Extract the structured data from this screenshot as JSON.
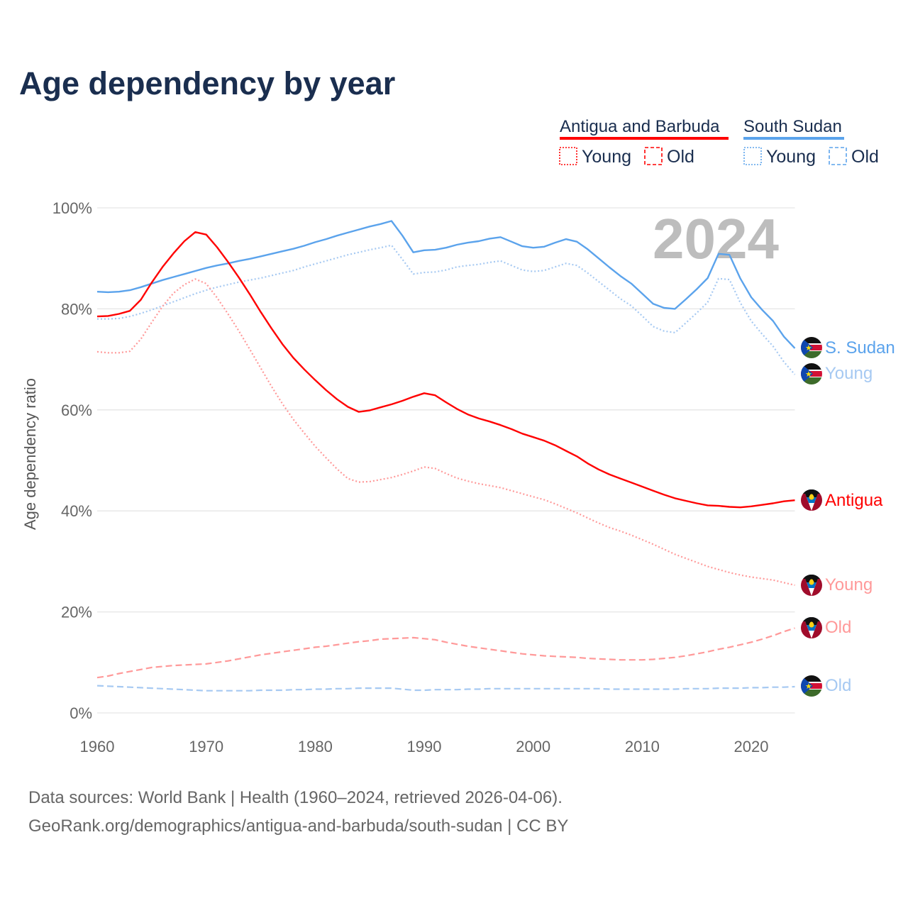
{
  "title": "Age dependency by year",
  "watermark_year": "2024",
  "legend": {
    "groups": [
      {
        "name": "Antigua and Barbuda",
        "color": "#ff0000",
        "light": "#ff9999",
        "young": "Young",
        "old": "Old"
      },
      {
        "name": "South Sudan",
        "color": "#5ba3ec",
        "light": "#a6c9f2",
        "young": "Young",
        "old": "Old"
      }
    ]
  },
  "end_labels": {
    "ss_total": "S. Sudan",
    "ss_young": "Young",
    "ag_total": "Antigua",
    "ag_young": "Young",
    "ag_old": "Old",
    "ss_old": "Old"
  },
  "sources": {
    "line1": "Data sources: World Bank | Health (1960–2024, retrieved 2026-04-06).",
    "line2": "GeoRank.org/demographics/antigua-and-barbuda/south-sudan | CC BY"
  },
  "chart_data": {
    "type": "line",
    "title": "Age dependency by year",
    "xlabel": "",
    "ylabel": "Age dependency ratio",
    "xlim": [
      1960,
      2024
    ],
    "ylim": [
      0,
      100
    ],
    "x_ticks": [
      "1960",
      "1970",
      "1980",
      "1990",
      "2000",
      "2010",
      "2020"
    ],
    "y_ticks": [
      "0%",
      "20%",
      "40%",
      "60%",
      "80%",
      "100%"
    ],
    "grid": true,
    "legend_position": "top-right",
    "x_start": 1960,
    "series": [
      {
        "key": "ss_total",
        "name": "South Sudan",
        "color": "#5ba3ec",
        "dash": "solid",
        "values": [
          83.4,
          83.3,
          83.4,
          83.7,
          84.3,
          85.0,
          85.7,
          86.3,
          86.9,
          87.5,
          88.1,
          88.6,
          89.0,
          89.5,
          89.9,
          90.4,
          90.9,
          91.4,
          91.9,
          92.5,
          93.2,
          93.8,
          94.5,
          95.1,
          95.7,
          96.3,
          96.8,
          97.4,
          94.5,
          91.2,
          91.6,
          91.7,
          92.1,
          92.7,
          93.1,
          93.4,
          93.9,
          94.2,
          93.3,
          92.4,
          92.1,
          92.3,
          93.1,
          93.8,
          93.3,
          91.8,
          90.0,
          88.2,
          86.5,
          85.0,
          83.0,
          81.0,
          80.2,
          80.0,
          81.9,
          83.9,
          86.1,
          90.9,
          90.7,
          86.0,
          82.3,
          79.8,
          77.6,
          74.5,
          72.2
        ]
      },
      {
        "key": "ss_young",
        "name": "South Sudan Young",
        "color": "#a6c9f2",
        "dash": "dotted",
        "values": [
          78.0,
          78.0,
          78.1,
          78.5,
          79.1,
          79.8,
          80.6,
          81.4,
          82.2,
          83.0,
          83.7,
          84.3,
          84.8,
          85.3,
          85.7,
          86.1,
          86.6,
          87.1,
          87.6,
          88.3,
          88.9,
          89.5,
          90.1,
          90.7,
          91.2,
          91.7,
          92.1,
          92.6,
          89.8,
          86.9,
          87.2,
          87.3,
          87.7,
          88.3,
          88.6,
          88.8,
          89.2,
          89.5,
          88.6,
          87.7,
          87.4,
          87.6,
          88.3,
          89.0,
          88.6,
          87.1,
          85.4,
          83.7,
          82.0,
          80.6,
          78.6,
          76.5,
          75.6,
          75.3,
          77.2,
          79.2,
          81.3,
          86.0,
          85.8,
          81.2,
          77.6,
          75.0,
          72.6,
          69.5,
          67.0
        ]
      },
      {
        "key": "ss_old",
        "name": "South Sudan Old",
        "color": "#a6c9f2",
        "dash": "dashed",
        "values": [
          5.4,
          5.3,
          5.2,
          5.1,
          5.0,
          4.9,
          4.8,
          4.7,
          4.6,
          4.5,
          4.4,
          4.4,
          4.4,
          4.4,
          4.4,
          4.5,
          4.5,
          4.5,
          4.6,
          4.6,
          4.7,
          4.7,
          4.8,
          4.8,
          4.9,
          4.9,
          4.9,
          4.9,
          4.7,
          4.5,
          4.5,
          4.6,
          4.6,
          4.6,
          4.7,
          4.7,
          4.8,
          4.8,
          4.8,
          4.8,
          4.8,
          4.8,
          4.8,
          4.8,
          4.8,
          4.8,
          4.8,
          4.7,
          4.7,
          4.7,
          4.7,
          4.7,
          4.7,
          4.7,
          4.8,
          4.8,
          4.8,
          4.9,
          4.9,
          4.9,
          5.0,
          5.0,
          5.1,
          5.1,
          5.2
        ]
      },
      {
        "key": "ag_total",
        "name": "Antigua and Barbuda",
        "color": "#ff0000",
        "dash": "solid",
        "values": [
          78.5,
          78.6,
          79.0,
          79.6,
          81.8,
          85.2,
          88.3,
          91.0,
          93.4,
          95.2,
          94.7,
          92.2,
          89.3,
          86.2,
          82.9,
          79.4,
          76.1,
          73.0,
          70.3,
          68.0,
          65.9,
          63.9,
          62.1,
          60.6,
          59.6,
          59.9,
          60.5,
          61.1,
          61.8,
          62.6,
          63.3,
          62.9,
          61.5,
          60.2,
          59.1,
          58.3,
          57.7,
          57.0,
          56.2,
          55.3,
          54.6,
          53.9,
          53.0,
          51.9,
          50.8,
          49.4,
          48.2,
          47.2,
          46.4,
          45.6,
          44.8,
          44.0,
          43.2,
          42.5,
          42.0,
          41.5,
          41.1,
          41.0,
          40.8,
          40.7,
          40.9,
          41.2,
          41.5,
          41.9,
          42.1
        ]
      },
      {
        "key": "ag_young",
        "name": "Antigua and Barbuda Young",
        "color": "#ff9999",
        "dash": "dotted",
        "values": [
          71.5,
          71.3,
          71.3,
          71.6,
          74.0,
          77.3,
          80.5,
          83.1,
          84.8,
          85.9,
          85.0,
          82.2,
          79.0,
          75.6,
          72.0,
          68.3,
          64.6,
          61.2,
          58.1,
          55.4,
          52.8,
          50.5,
          48.3,
          46.4,
          45.7,
          45.8,
          46.2,
          46.6,
          47.2,
          47.9,
          48.7,
          48.4,
          47.4,
          46.5,
          45.9,
          45.4,
          45.0,
          44.6,
          44.0,
          43.4,
          42.8,
          42.2,
          41.4,
          40.5,
          39.6,
          38.6,
          37.6,
          36.7,
          36.0,
          35.2,
          34.3,
          33.4,
          32.4,
          31.4,
          30.6,
          29.8,
          29.0,
          28.4,
          27.8,
          27.3,
          26.9,
          26.6,
          26.3,
          25.8,
          25.3
        ]
      },
      {
        "key": "ag_old",
        "name": "Antigua and Barbuda Old",
        "color": "#ff9999",
        "dash": "dashed",
        "values": [
          7.0,
          7.3,
          7.8,
          8.2,
          8.6,
          9.0,
          9.2,
          9.4,
          9.5,
          9.6,
          9.7,
          10.0,
          10.3,
          10.7,
          11.1,
          11.5,
          11.8,
          12.1,
          12.4,
          12.7,
          13.0,
          13.2,
          13.5,
          13.8,
          14.1,
          14.3,
          14.6,
          14.7,
          14.8,
          14.9,
          14.7,
          14.5,
          14.0,
          13.6,
          13.2,
          12.9,
          12.6,
          12.3,
          12.0,
          11.7,
          11.5,
          11.3,
          11.2,
          11.1,
          11.0,
          10.8,
          10.7,
          10.6,
          10.5,
          10.5,
          10.5,
          10.6,
          10.8,
          11.0,
          11.3,
          11.7,
          12.1,
          12.6,
          13.0,
          13.5,
          14.0,
          14.6,
          15.3,
          16.1,
          16.8
        ]
      }
    ]
  }
}
